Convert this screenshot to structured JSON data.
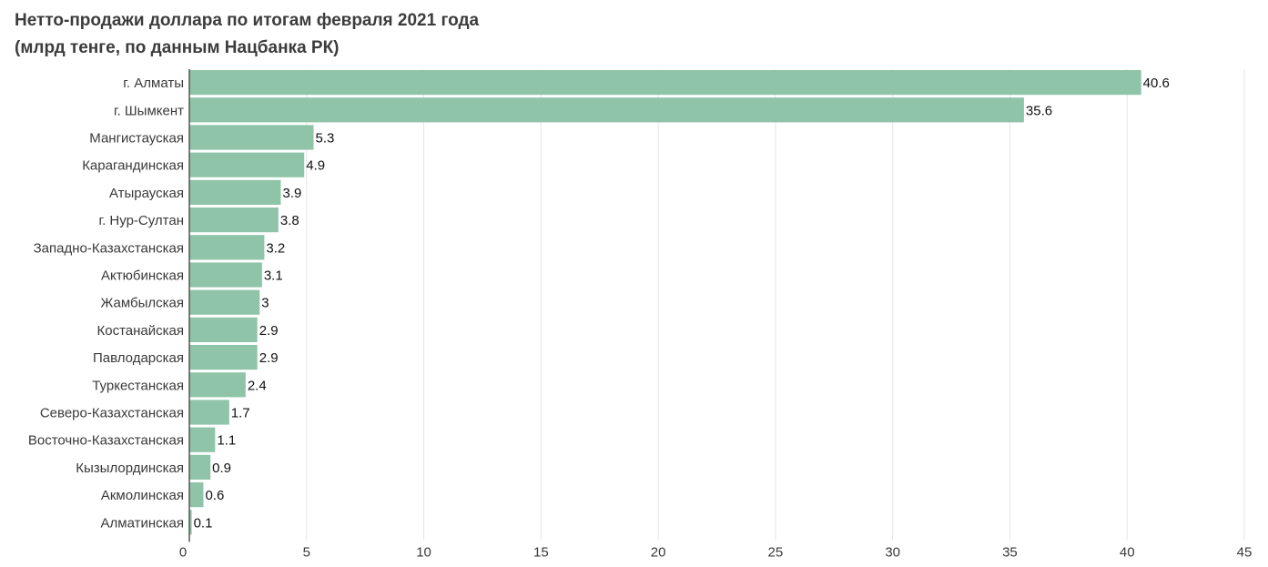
{
  "chart_data": {
    "type": "bar",
    "orientation": "horizontal",
    "title": "Нетто-продажи доллара по итогам февраля 2021 года",
    "subtitle": "(млрд тенге, по данным Нацбанка РК)",
    "categories": [
      "г. Алматы",
      "г. Шымкент",
      "Мангистауская",
      "Карагандинская",
      "Атырауская",
      "г. Нур-Султан",
      "Западно-Казахстанская",
      "Актюбинская",
      "Жамбылская",
      "Костанайская",
      "Павлодарская",
      "Туркестанская",
      "Северо-Казахстанская",
      "Восточно-Казахстанская",
      "Кызылординская",
      "Акмолинская",
      "Алматинская"
    ],
    "values": [
      40.6,
      35.6,
      5.3,
      4.9,
      3.9,
      3.8,
      3.2,
      3.1,
      3,
      2.9,
      2.9,
      2.4,
      1.7,
      1.1,
      0.9,
      0.6,
      0.1
    ],
    "value_labels": [
      "40.6",
      "35.6",
      "5.3",
      "4.9",
      "3.9",
      "3.8",
      "3.2",
      "3.1",
      "3",
      "2.9",
      "2.9",
      "2.4",
      "1.7",
      "1.1",
      "0.9",
      "0.6",
      "0.1"
    ],
    "xticks": [
      0,
      5,
      10,
      15,
      20,
      25,
      30,
      35,
      40,
      45
    ],
    "xlim": [
      0,
      45
    ],
    "grid": true,
    "legend": "none",
    "colors": {
      "bar": "#8fc4a8",
      "grid": "#e6e6e6",
      "axis": "#555555"
    }
  }
}
